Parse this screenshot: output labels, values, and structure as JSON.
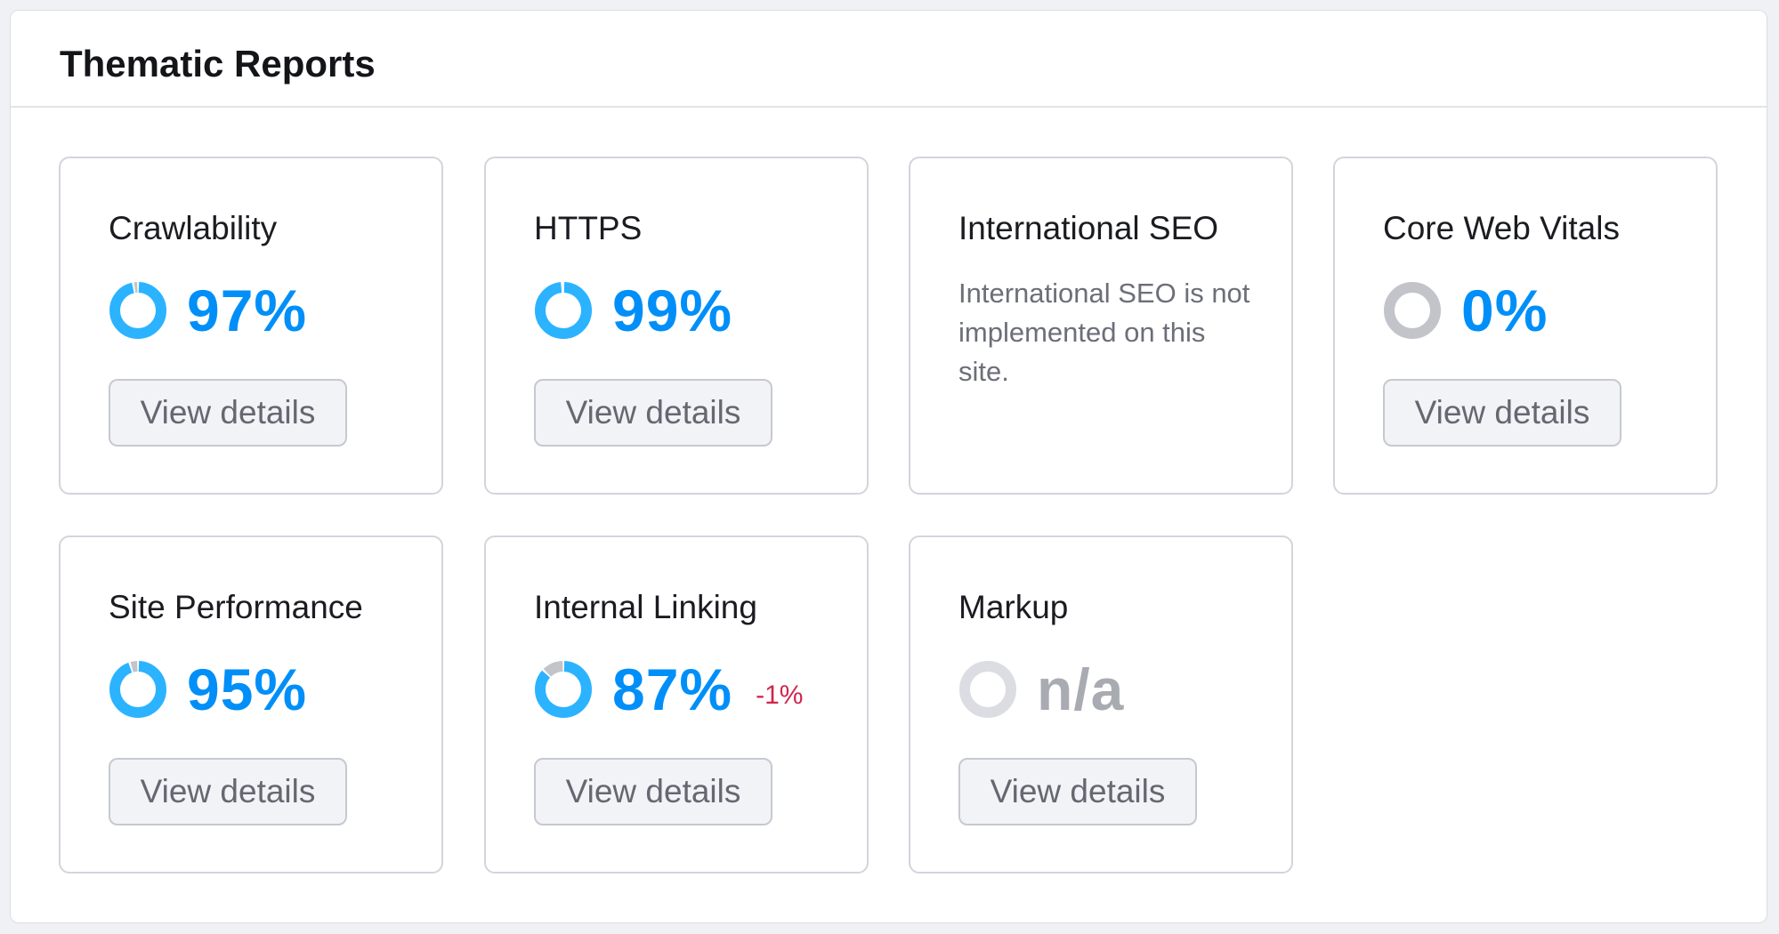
{
  "panel": {
    "title": "Thematic Reports"
  },
  "colors": {
    "accent": "#008ff8",
    "ring": "#2bb3ff",
    "ring_remainder": "#c2c4ca",
    "na": "#dcdde2",
    "negative": "#d1254d"
  },
  "cards": [
    {
      "title": "Crawlability",
      "value": "97%",
      "percent": 97,
      "button": "View details"
    },
    {
      "title": "HTTPS",
      "value": "99%",
      "percent": 99,
      "button": "View details"
    },
    {
      "title": "International SEO",
      "description": "International SEO is not implemented on this site."
    },
    {
      "title": "Core Web Vitals",
      "value": "0%",
      "percent": 0,
      "button": "View details"
    },
    {
      "title": "Site Performance",
      "value": "95%",
      "percent": 95,
      "button": "View details"
    },
    {
      "title": "Internal Linking",
      "value": "87%",
      "percent": 87,
      "delta": "-1%",
      "button": "View details"
    },
    {
      "title": "Markup",
      "value": "n/a",
      "button": "View details"
    }
  ]
}
